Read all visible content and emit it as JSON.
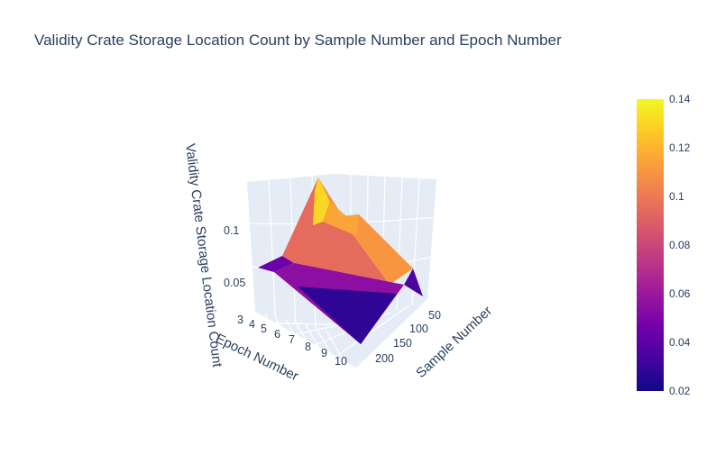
{
  "chart_data": {
    "type": "surface",
    "title": "Validity Crate Storage Location Count by Sample Number and Epoch Number",
    "scene": {
      "xaxis": {
        "title": "Sample Number",
        "ticks": [
          "50",
          "100",
          "150",
          "200"
        ]
      },
      "yaxis": {
        "title": "Epoch Number",
        "ticks": [
          "3",
          "4",
          "5",
          "6",
          "7",
          "8",
          "9",
          "10"
        ]
      },
      "zaxis": {
        "title": "Validity Crate Storage Location Count",
        "ticks": [
          "0.05",
          "0.1"
        ]
      }
    },
    "colorbar": {
      "ticks": [
        "0.02",
        "0.04",
        "0.06",
        "0.08",
        "0.1",
        "0.12",
        "0.14"
      ],
      "range": [
        0.02,
        0.14
      ],
      "colorscale": "plasma"
    },
    "x": [
      20,
      230
    ],
    "y": [
      3,
      10
    ],
    "z": [
      [
        0.055,
        0.138
      ],
      [
        0.022,
        0.045
      ]
    ]
  },
  "colors": {
    "text": "#2a3f5f",
    "grid": "#ffffff",
    "wall": "#e5ecf6"
  }
}
